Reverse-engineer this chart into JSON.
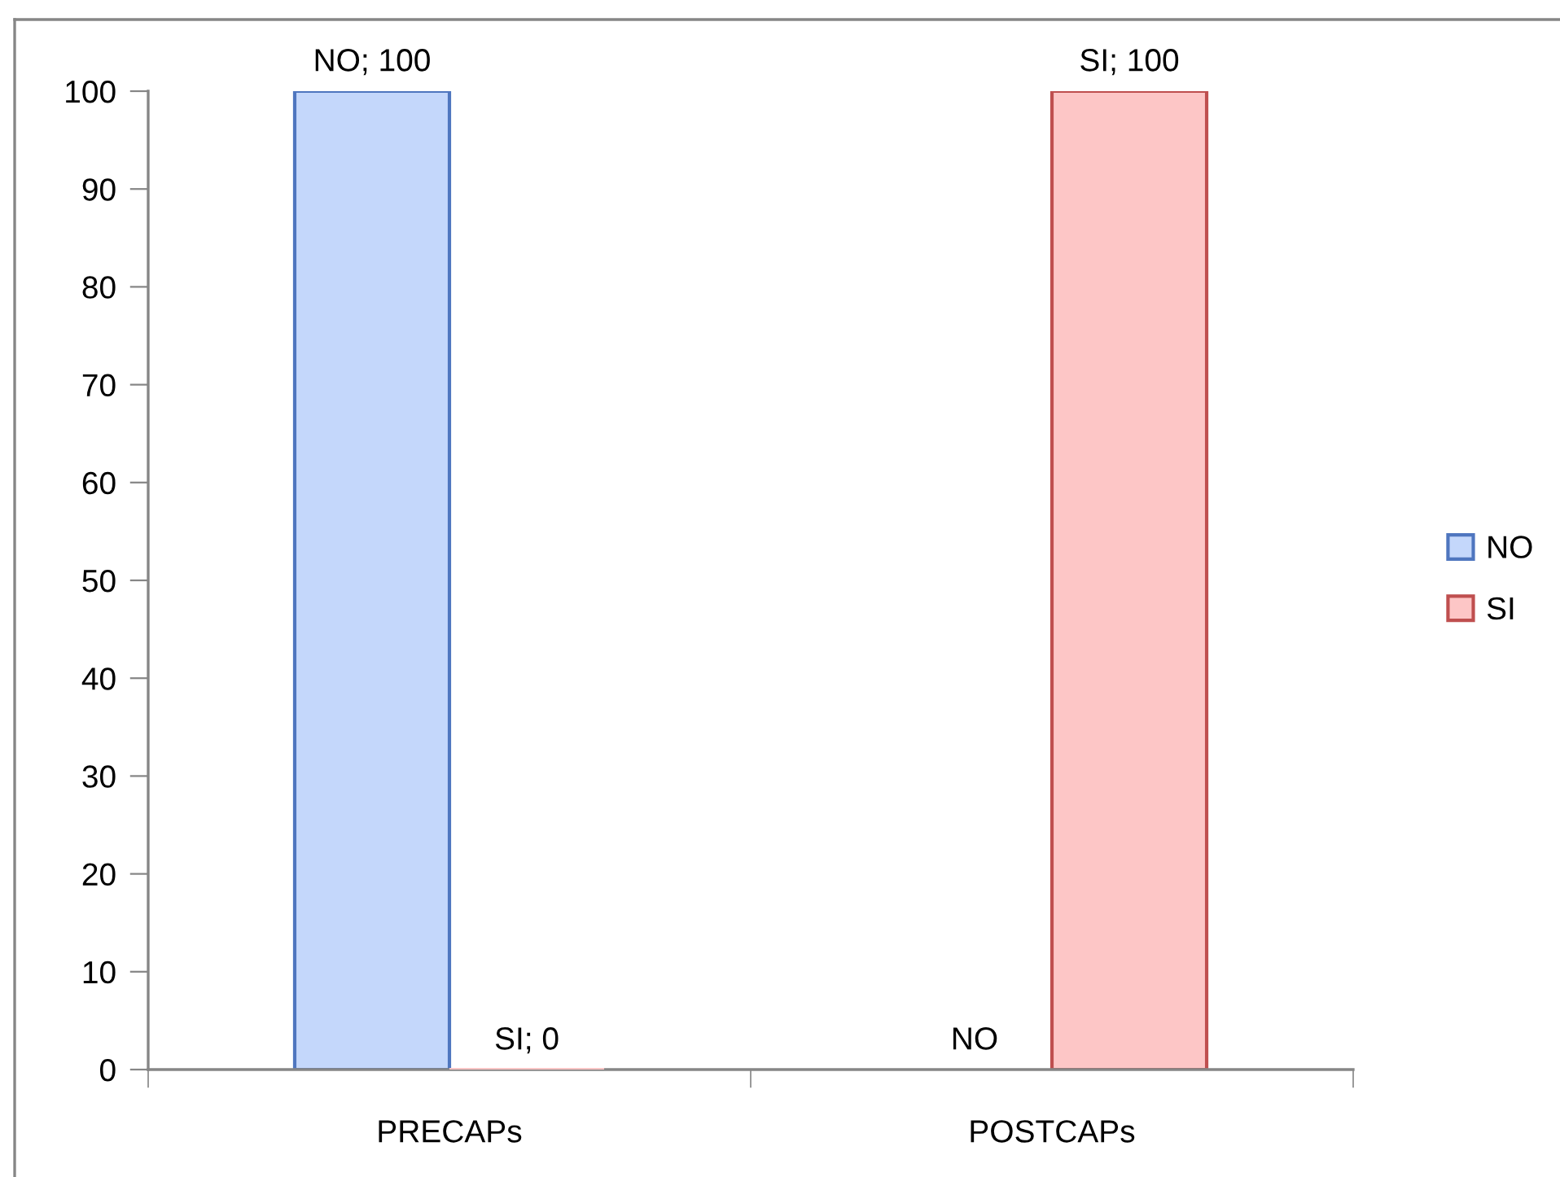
{
  "chart_data": {
    "type": "bar",
    "categories": [
      "PRECAPs",
      "POSTCAPs"
    ],
    "series": [
      {
        "name": "NO",
        "color": "#c4d7fb",
        "values": [
          100,
          null
        ],
        "value_labels": [
          "NO; 100",
          "NO"
        ]
      },
      {
        "name": "SI",
        "color": "#fdc6c6",
        "values": [
          0,
          100
        ],
        "value_labels": [
          "SI; 0",
          "SI; 100"
        ]
      }
    ],
    "ylim": [
      0,
      100
    ],
    "yticks": [
      0,
      10,
      20,
      30,
      40,
      50,
      60,
      70,
      80,
      90,
      100
    ],
    "grid": false,
    "legend": "right"
  }
}
